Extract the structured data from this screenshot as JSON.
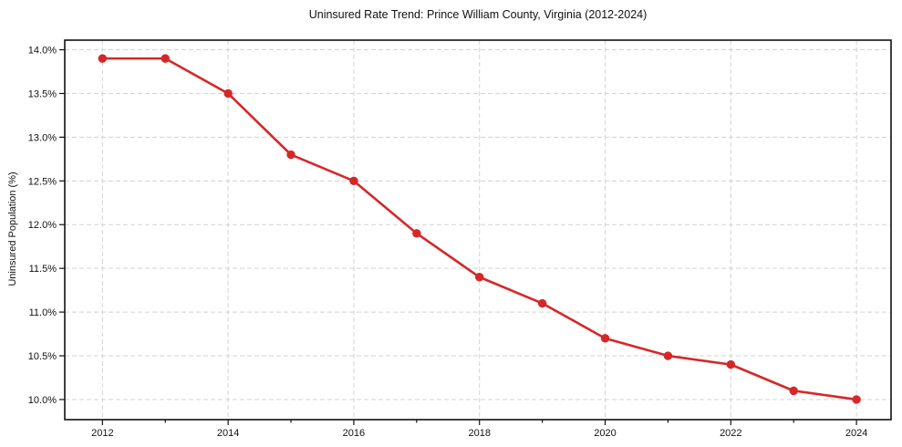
{
  "chart_data": {
    "type": "line",
    "title": "Uninsured Rate Trend: Prince William County, Virginia (2012-2024)",
    "xlabel": "",
    "ylabel": "Uninsured Population (%)",
    "x": [
      2012,
      2013,
      2014,
      2015,
      2016,
      2017,
      2018,
      2019,
      2020,
      2021,
      2022,
      2023,
      2024
    ],
    "series": [
      {
        "name": "Uninsured rate",
        "color": "#d62728",
        "marker": "circle",
        "values": [
          13.9,
          13.9,
          13.5,
          12.8,
          12.5,
          11.9,
          11.4,
          11.1,
          10.7,
          10.5,
          10.4,
          10.1,
          10.0
        ]
      }
    ],
    "xlim": [
      2011.4,
      2024.55
    ],
    "ylim": [
      9.77,
      14.11
    ],
    "x_major_ticks": [
      2012,
      2014,
      2016,
      2018,
      2020,
      2022,
      2024
    ],
    "x_major_tick_labels": [
      "2012",
      "2014",
      "2016",
      "2018",
      "2020",
      "2022",
      "2024"
    ],
    "x_minor_ticks": [
      2013,
      2015,
      2017,
      2019,
      2021,
      2023
    ],
    "y_ticks": [
      10.0,
      10.5,
      11.0,
      11.5,
      12.0,
      12.5,
      13.0,
      13.5,
      14.0
    ],
    "y_tick_labels": [
      "10.0%",
      "10.5%",
      "11.0%",
      "11.5%",
      "12.0%",
      "12.5%",
      "13.0%",
      "13.5%",
      "14.0%"
    ],
    "grid": true,
    "grid_line_style": "dashed",
    "grid_color": "#d3d3d3",
    "legend": false,
    "background_color": "#ffffff"
  }
}
